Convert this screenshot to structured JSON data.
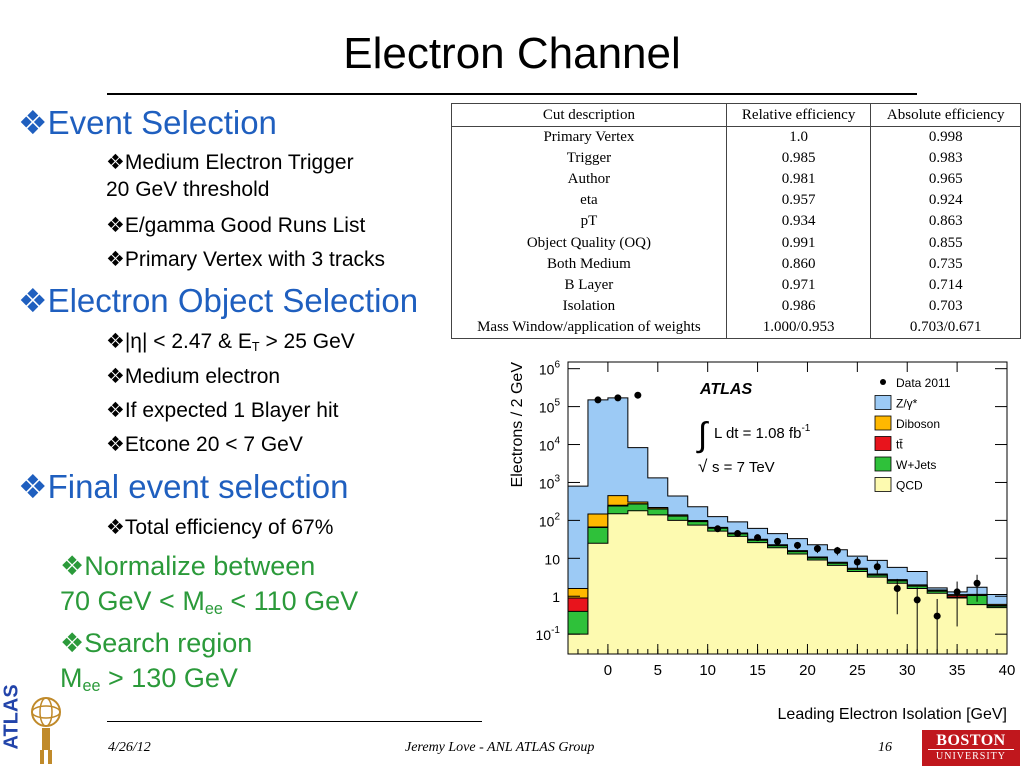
{
  "slide": {
    "title": "Electron Channel",
    "footer": {
      "date": "4/26/12",
      "author": "Jeremy Love - ANL ATLAS Group",
      "page": "16"
    },
    "logos": {
      "atlas": "ATLAS",
      "bu_top": "BOSTON",
      "bu_bottom": "UNIVERSITY"
    }
  },
  "bullets": {
    "event_selection": {
      "title": "Event Selection",
      "items": [
        "Medium Electron Trigger",
        "20 GeV threshold",
        "E/gamma Good Runs List",
        "Primary Vertex with 3 tracks"
      ]
    },
    "object_selection": {
      "title": "Electron Object Selection",
      "eta_cut_a": "|η| < 2.47 & E",
      "eta_cut_sub": "T",
      "eta_cut_b": " > 25 GeV",
      "items": [
        "Medium electron",
        "If expected 1 Blayer hit",
        "Etcone 20 < 7 GeV"
      ]
    },
    "final_selection": {
      "title": "Final event selection",
      "items": [
        "Total efficiency of 67%"
      ]
    },
    "normalize": {
      "line1": "Normalize between",
      "line2a": "70 GeV < M",
      "line2sub": "ee",
      "line2b": " < 110 GeV"
    },
    "search": {
      "line1": "Search region",
      "line2a": "M",
      "line2sub": "ee",
      "line2b": " > 130 GeV"
    },
    "marker": "❖"
  },
  "table": {
    "headers": [
      "Cut description",
      "Relative efficiency",
      "Absolute efficiency"
    ],
    "rows": [
      [
        "Primary Vertex",
        "1.0",
        "0.998"
      ],
      [
        "Trigger",
        "0.985",
        "0.983"
      ],
      [
        "Author",
        "0.981",
        "0.965"
      ],
      [
        "eta",
        "0.957",
        "0.924"
      ],
      [
        "pT",
        "0.934",
        "0.863"
      ],
      [
        "Object Quality (OQ)",
        "0.991",
        "0.855"
      ],
      [
        "Both Medium",
        "0.860",
        "0.735"
      ],
      [
        "B Layer",
        "0.971",
        "0.714"
      ],
      [
        "Isolation",
        "0.986",
        "0.703"
      ],
      [
        "Mass Window/application of weights",
        "1.000/0.953",
        "0.703/0.671"
      ]
    ]
  },
  "chart_data": {
    "type": "bar",
    "xlabel": "Leading Electron Isolation [GeV]",
    "ylabel": "Electrons / 2 GeV",
    "xlim": [
      -4,
      40
    ],
    "ylim": [
      0.03,
      1500000
    ],
    "yscale": "log",
    "bin_width": 2,
    "bin_edges": [
      -4,
      -2,
      0,
      2,
      4,
      6,
      8,
      10,
      12,
      14,
      16,
      18,
      20,
      22,
      24,
      26,
      28,
      30,
      32,
      34,
      36,
      38,
      40
    ],
    "xticks": [
      0,
      5,
      10,
      15,
      20,
      25,
      30,
      35,
      40
    ],
    "yticks": [
      {
        "value": 0.1,
        "base": "10",
        "exp": "-1"
      },
      {
        "value": 1,
        "base": "1",
        "exp": ""
      },
      {
        "value": 10,
        "base": "10",
        "exp": ""
      },
      {
        "value": 100,
        "base": "10",
        "exp": "2"
      },
      {
        "value": 1000,
        "base": "10",
        "exp": "3"
      },
      {
        "value": 10000,
        "base": "10",
        "exp": "4"
      },
      {
        "value": 100000,
        "base": "10",
        "exp": "5"
      },
      {
        "value": 1000000,
        "base": "10",
        "exp": "6"
      }
    ],
    "stack_order": [
      "QCD",
      "W+Jets",
      "tt",
      "Diboson",
      "Z/γ*"
    ],
    "series": [
      {
        "name": "QCD",
        "color": "#fdfab0",
        "values": [
          0.1,
          25,
          150,
          180,
          140,
          100,
          75,
          52,
          38,
          26,
          19,
          13,
          9,
          6.5,
          4.5,
          3.2,
          2.2,
          1.6,
          1.2,
          0.9,
          0.6,
          0.5
        ]
      },
      {
        "name": "W+Jets",
        "color": "#2fc13a",
        "values": [
          0.3,
          40,
          90,
          90,
          60,
          30,
          18,
          10,
          6,
          4,
          2.5,
          2,
          1.2,
          0.9,
          0.6,
          0.4,
          0.35,
          0.25,
          0.15,
          0.04,
          0.45,
          0.05
        ]
      },
      {
        "name": "tt",
        "color": "#e8141c",
        "values": [
          0.5,
          2,
          10,
          5,
          3,
          2,
          1,
          0.6,
          0.4,
          0.3,
          0.2,
          0.15,
          0.1,
          0.08,
          0.06,
          0.05,
          0.05,
          0.04,
          0.03,
          0.1,
          0.02,
          0.02
        ]
      },
      {
        "name": "Diboson",
        "color": "#ffb800",
        "values": [
          0.7,
          80,
          200,
          30,
          15,
          8,
          5,
          3,
          2,
          1.5,
          1,
          0.8,
          0.5,
          0.4,
          0.3,
          0.2,
          0.15,
          0.1,
          0.08,
          0.06,
          0.05,
          0.04
        ]
      },
      {
        "name": "Z/γ*",
        "color": "#9ccaf5",
        "values": [
          800,
          150000,
          170000,
          8000,
          1100,
          300,
          130,
          60,
          45,
          30,
          22,
          17,
          12,
          9,
          6,
          5,
          3,
          2.5,
          0.2,
          0.2,
          0.6,
          0.5
        ]
      }
    ],
    "data_points": {
      "name": "Data 2011",
      "x": [
        -1,
        1,
        3,
        11,
        13,
        15,
        17,
        19,
        21,
        23,
        25,
        27,
        29,
        31,
        33,
        35,
        37
      ],
      "y": [
        150000,
        170000,
        200000,
        60,
        45,
        35,
        28,
        22,
        18,
        16,
        8,
        6,
        1.6,
        0.8,
        0.3,
        1.3,
        2.2
      ]
    },
    "annotations": {
      "experiment": "ATLAS",
      "lumi": "L dt = 1.08 fb",
      "lumi_exp": "-1",
      "energy": "s = 7 TeV"
    },
    "legend": [
      "Data 2011",
      "Z/γ*",
      "Diboson",
      "tt̄",
      "W+Jets",
      "QCD"
    ],
    "legend_position": "top-right"
  }
}
